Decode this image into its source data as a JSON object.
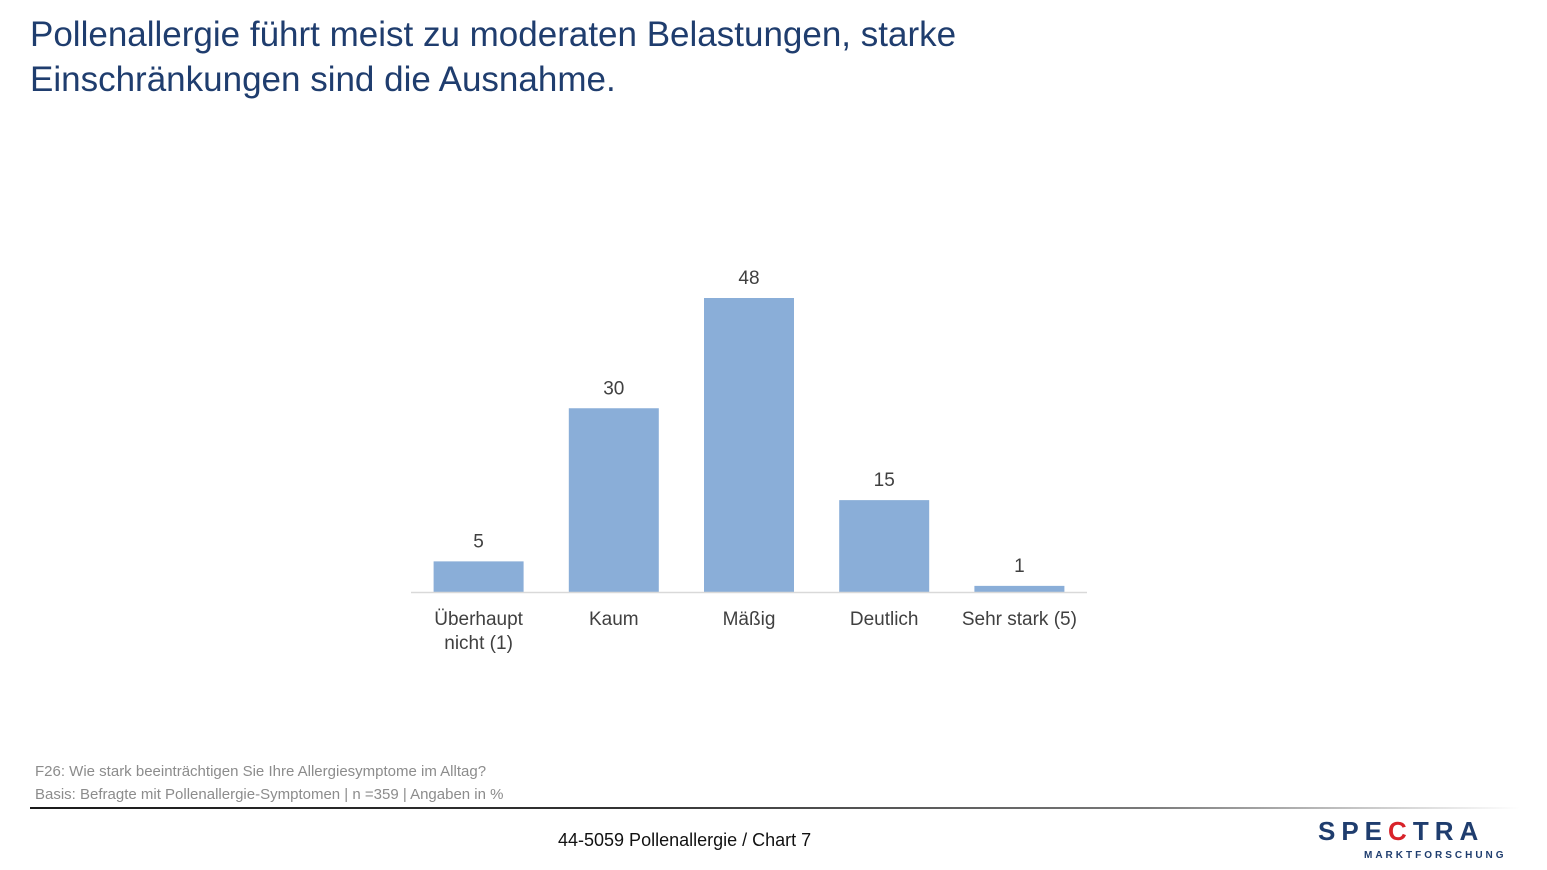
{
  "title": {
    "line1": "Pollenallergie führt meist zu moderaten Belastungen, starke",
    "line2": "Einschränkungen sind die Ausnahme."
  },
  "chart_data": {
    "type": "bar",
    "categories": [
      [
        "Überhaupt",
        "nicht (1)"
      ],
      [
        "Kaum"
      ],
      [
        "Mäßig"
      ],
      [
        "Deutlich"
      ],
      [
        "Sehr stark (5)"
      ]
    ],
    "values": [
      5,
      30,
      48,
      15,
      1
    ],
    "value_labels": [
      "5",
      "30",
      "48",
      "15",
      "1"
    ],
    "title": "",
    "xlabel": "",
    "ylabel": "",
    "ylim": [
      0,
      50
    ],
    "grid": false,
    "legend": "none",
    "bar_color": "#8aaed8",
    "axis_color": "#d9d9d9",
    "label_color": "#404040"
  },
  "footnote": {
    "question": "F26: Wie stark beeinträchtigen Sie Ihre Allergiesymptome im Alltag?",
    "basis": "Basis: Befragte mit Pollenallergie-Symptomen | n =359 | Angaben in %"
  },
  "footer": {
    "page_label": "44-5059 Pollenallergie  /  Chart 7"
  },
  "logo": {
    "part1": "SPE",
    "part2": "C",
    "part3": "TRA",
    "subtitle": "MARKTFORSCHUNG"
  },
  "colors": {
    "title": "#1f3d6e",
    "footnote": "#8c8c8c",
    "logo_blue": "#1f3d6e",
    "logo_red": "#d8232a"
  }
}
